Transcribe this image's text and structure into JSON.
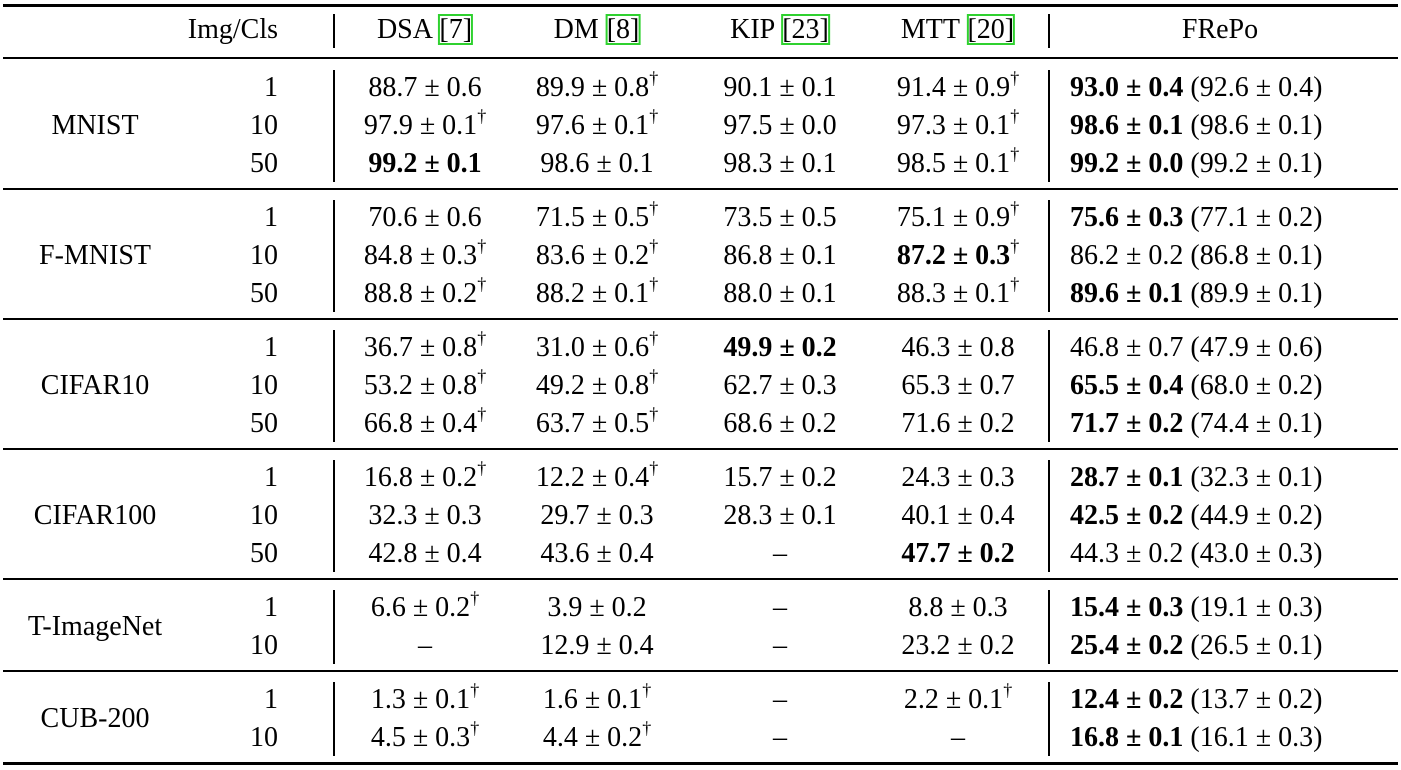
{
  "table": {
    "header": {
      "ipc": "Img/Cls",
      "methods": [
        {
          "name": "DSA",
          "ref": "[7]"
        },
        {
          "name": "DM",
          "ref": "[8]"
        },
        {
          "name": "KIP",
          "ref": "[23]"
        },
        {
          "name": "MTT",
          "ref": "[20]"
        },
        {
          "name": "FRePo"
        }
      ]
    },
    "groups": [
      {
        "dataset": "MNIST",
        "rows": [
          {
            "ipc": "1",
            "cells": [
              {
                "text": "88.7 ± 0.6"
              },
              {
                "text": "89.9 ± 0.8",
                "mark": "†"
              },
              {
                "text": "90.1 ± 0.1"
              },
              {
                "text": "91.4 ± 0.9",
                "mark": "†"
              },
              {
                "text": "93.0 ± 0.4",
                "bold": true,
                "extra": "(92.6 ± 0.4)"
              }
            ]
          },
          {
            "ipc": "10",
            "cells": [
              {
                "text": "97.9 ± 0.1",
                "mark": "†"
              },
              {
                "text": "97.6 ± 0.1",
                "mark": "†"
              },
              {
                "text": "97.5 ± 0.0"
              },
              {
                "text": "97.3 ± 0.1",
                "mark": "†"
              },
              {
                "text": "98.6 ± 0.1",
                "bold": true,
                "extra": "(98.6 ± 0.1)"
              }
            ]
          },
          {
            "ipc": "50",
            "cells": [
              {
                "text": "99.2 ± 0.1",
                "bold": true
              },
              {
                "text": "98.6 ± 0.1"
              },
              {
                "text": "98.3 ± 0.1"
              },
              {
                "text": "98.5 ± 0.1",
                "mark": "†"
              },
              {
                "text": "99.2 ± 0.0",
                "bold": true,
                "extra": "(99.2 ± 0.1)"
              }
            ]
          }
        ]
      },
      {
        "dataset": "F-MNIST",
        "rows": [
          {
            "ipc": "1",
            "cells": [
              {
                "text": "70.6 ± 0.6"
              },
              {
                "text": "71.5 ± 0.5",
                "mark": "†"
              },
              {
                "text": "73.5 ± 0.5"
              },
              {
                "text": "75.1 ± 0.9",
                "mark": "†"
              },
              {
                "text": "75.6 ± 0.3",
                "bold": true,
                "extra": "(77.1 ± 0.2)"
              }
            ]
          },
          {
            "ipc": "10",
            "cells": [
              {
                "text": "84.8 ± 0.3",
                "mark": "†"
              },
              {
                "text": "83.6 ± 0.2",
                "mark": "†"
              },
              {
                "text": "86.8 ± 0.1"
              },
              {
                "text": "87.2 ± 0.3",
                "bold": true,
                "mark": "†"
              },
              {
                "text": "86.2 ± 0.2",
                "extra": "(86.8 ± 0.1)"
              }
            ]
          },
          {
            "ipc": "50",
            "cells": [
              {
                "text": "88.8 ± 0.2",
                "mark": "†"
              },
              {
                "text": "88.2 ± 0.1",
                "mark": "†"
              },
              {
                "text": "88.0 ± 0.1"
              },
              {
                "text": "88.3 ± 0.1",
                "mark": "†"
              },
              {
                "text": "89.6 ± 0.1",
                "bold": true,
                "extra": "(89.9 ± 0.1)"
              }
            ]
          }
        ]
      },
      {
        "dataset": "CIFAR10",
        "rows": [
          {
            "ipc": "1",
            "cells": [
              {
                "text": "36.7 ± 0.8",
                "mark": "†"
              },
              {
                "text": "31.0 ± 0.6",
                "mark": "†"
              },
              {
                "text": "49.9 ± 0.2",
                "bold": true
              },
              {
                "text": "46.3 ± 0.8"
              },
              {
                "text": "46.8 ± 0.7",
                "extra": "(47.9 ± 0.6)"
              }
            ]
          },
          {
            "ipc": "10",
            "cells": [
              {
                "text": "53.2 ± 0.8",
                "mark": "†"
              },
              {
                "text": "49.2 ± 0.8",
                "mark": "†"
              },
              {
                "text": "62.7 ± 0.3"
              },
              {
                "text": "65.3 ± 0.7"
              },
              {
                "text": "65.5 ± 0.4",
                "bold": true,
                "extra": "(68.0 ± 0.2)"
              }
            ]
          },
          {
            "ipc": "50",
            "cells": [
              {
                "text": "66.8 ± 0.4",
                "mark": "†"
              },
              {
                "text": "63.7 ± 0.5",
                "mark": "†"
              },
              {
                "text": "68.6 ± 0.2"
              },
              {
                "text": "71.6 ± 0.2"
              },
              {
                "text": "71.7 ± 0.2",
                "bold": true,
                "extra": "(74.4 ± 0.1)"
              }
            ]
          }
        ]
      },
      {
        "dataset": "CIFAR100",
        "rows": [
          {
            "ipc": "1",
            "cells": [
              {
                "text": "16.8 ± 0.2",
                "mark": "†"
              },
              {
                "text": "12.2 ± 0.4",
                "mark": "†"
              },
              {
                "text": "15.7 ± 0.2"
              },
              {
                "text": "24.3 ± 0.3"
              },
              {
                "text": "28.7 ± 0.1",
                "bold": true,
                "extra": "(32.3 ± 0.1)"
              }
            ]
          },
          {
            "ipc": "10",
            "cells": [
              {
                "text": "32.3 ± 0.3"
              },
              {
                "text": "29.7 ± 0.3"
              },
              {
                "text": "28.3 ± 0.1"
              },
              {
                "text": "40.1 ± 0.4"
              },
              {
                "text": "42.5 ± 0.2",
                "bold": true,
                "extra": "(44.9 ± 0.2)"
              }
            ]
          },
          {
            "ipc": "50",
            "cells": [
              {
                "text": "42.8 ± 0.4"
              },
              {
                "text": "43.6 ± 0.4"
              },
              {
                "text": "–"
              },
              {
                "text": "47.7 ± 0.2",
                "bold": true
              },
              {
                "text": "44.3 ± 0.2",
                "extra": "(43.0 ± 0.3)"
              }
            ]
          }
        ]
      },
      {
        "dataset": "T-ImageNet",
        "rows": [
          {
            "ipc": "1",
            "cells": [
              {
                "text": "6.6 ± 0.2",
                "mark": "†"
              },
              {
                "text": "3.9 ± 0.2"
              },
              {
                "text": "–"
              },
              {
                "text": "8.8 ± 0.3"
              },
              {
                "text": "15.4 ± 0.3",
                "bold": true,
                "extra": "(19.1 ± 0.3)"
              }
            ]
          },
          {
            "ipc": "10",
            "cells": [
              {
                "text": "–"
              },
              {
                "text": "12.9 ± 0.4"
              },
              {
                "text": "–"
              },
              {
                "text": "23.2 ± 0.2"
              },
              {
                "text": "25.4 ± 0.2",
                "bold": true,
                "extra": "(26.5 ± 0.1)"
              }
            ]
          }
        ]
      },
      {
        "dataset": "CUB-200",
        "rows": [
          {
            "ipc": "1",
            "cells": [
              {
                "text": "1.3 ± 0.1",
                "mark": "†"
              },
              {
                "text": "1.6 ± 0.1",
                "mark": "†"
              },
              {
                "text": "–"
              },
              {
                "text": "2.2 ± 0.1",
                "mark": "†"
              },
              {
                "text": "12.4 ± 0.2",
                "bold": true,
                "extra": "(13.7 ± 0.2)"
              }
            ]
          },
          {
            "ipc": "10",
            "cells": [
              {
                "text": "4.5 ± 0.3",
                "mark": "†"
              },
              {
                "text": "4.4 ± 0.2",
                "mark": "†"
              },
              {
                "text": "–"
              },
              {
                "text": "–"
              },
              {
                "text": "16.8 ± 0.1",
                "bold": true,
                "extra": "(16.1 ± 0.3)"
              }
            ]
          }
        ]
      }
    ]
  }
}
